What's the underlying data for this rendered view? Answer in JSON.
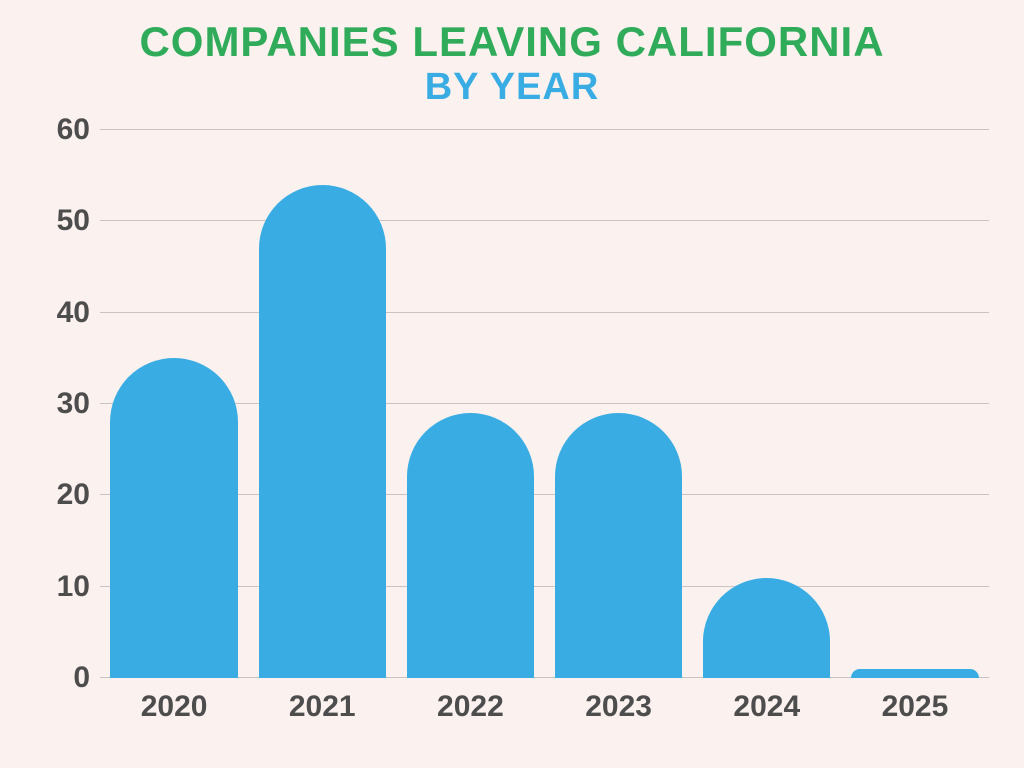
{
  "title": {
    "main": "COMPANIES LEAVING CALIFORNIA",
    "sub": "BY YEAR",
    "main_color": "#2fab5a",
    "sub_color": "#39ade3",
    "main_fontsize": 42,
    "sub_fontsize": 38
  },
  "chart": {
    "type": "bar",
    "background_color": "#fbf2ef",
    "grid_color": "#c9c3c1",
    "axis_label_color": "#4d4d4d",
    "axis_label_fontsize": 30,
    "bar_color": "#39ade3",
    "bar_border_radius_pct": 50,
    "ylim": [
      0,
      60
    ],
    "ytick_step": 10,
    "yticks": [
      "0",
      "10",
      "20",
      "30",
      "40",
      "50",
      "60"
    ],
    "categories": [
      "2020",
      "2021",
      "2022",
      "2023",
      "2024",
      "2025"
    ],
    "values": [
      35,
      54,
      29,
      29,
      11,
      1
    ]
  }
}
